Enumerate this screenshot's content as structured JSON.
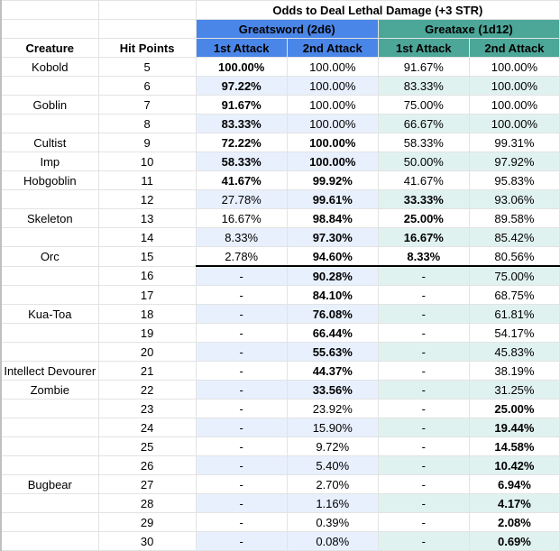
{
  "title": "Odds to Deal Lethal Damage (+3 STR)",
  "groups": [
    {
      "label": "Greatsword (2d6)",
      "color": "#4a86e8",
      "tint": "#e8f0fe"
    },
    {
      "label": "Greataxe (1d12)",
      "color": "#4ca799",
      "tint": "#e0f2ef"
    }
  ],
  "headers": [
    "Creature",
    "Hit Points",
    "1st Attack",
    "2nd Attack",
    "1st Attack",
    "2nd Attack"
  ],
  "rows": [
    {
      "creature": "Kobold",
      "hp": "5",
      "v": [
        "100.00%",
        "100.00%",
        "91.67%",
        "100.00%"
      ],
      "bold": [
        1,
        0,
        0,
        0
      ]
    },
    {
      "creature": "",
      "hp": "6",
      "v": [
        "97.22%",
        "100.00%",
        "83.33%",
        "100.00%"
      ],
      "bold": [
        1,
        0,
        0,
        0
      ]
    },
    {
      "creature": "Goblin",
      "hp": "7",
      "v": [
        "91.67%",
        "100.00%",
        "75.00%",
        "100.00%"
      ],
      "bold": [
        1,
        0,
        0,
        0
      ]
    },
    {
      "creature": "",
      "hp": "8",
      "v": [
        "83.33%",
        "100.00%",
        "66.67%",
        "100.00%"
      ],
      "bold": [
        1,
        0,
        0,
        0
      ]
    },
    {
      "creature": "Cultist",
      "hp": "9",
      "v": [
        "72.22%",
        "100.00%",
        "58.33%",
        "99.31%"
      ],
      "bold": [
        1,
        1,
        0,
        0
      ]
    },
    {
      "creature": "Imp",
      "hp": "10",
      "v": [
        "58.33%",
        "100.00%",
        "50.00%",
        "97.92%"
      ],
      "bold": [
        1,
        1,
        0,
        0
      ]
    },
    {
      "creature": "Hobgoblin",
      "hp": "11",
      "v": [
        "41.67%",
        "99.92%",
        "41.67%",
        "95.83%"
      ],
      "bold": [
        1,
        1,
        0,
        0
      ]
    },
    {
      "creature": "",
      "hp": "12",
      "v": [
        "27.78%",
        "99.61%",
        "33.33%",
        "93.06%"
      ],
      "bold": [
        0,
        1,
        1,
        0
      ]
    },
    {
      "creature": "Skeleton",
      "hp": "13",
      "v": [
        "16.67%",
        "98.84%",
        "25.00%",
        "89.58%"
      ],
      "bold": [
        0,
        1,
        1,
        0
      ]
    },
    {
      "creature": "",
      "hp": "14",
      "v": [
        "8.33%",
        "97.30%",
        "16.67%",
        "85.42%"
      ],
      "bold": [
        0,
        1,
        1,
        0
      ]
    },
    {
      "creature": "Orc",
      "hp": "15",
      "v": [
        "2.78%",
        "94.60%",
        "8.33%",
        "80.56%"
      ],
      "bold": [
        0,
        1,
        1,
        0
      ]
    },
    {
      "creature": "",
      "hp": "16",
      "v": [
        "-",
        "90.28%",
        "-",
        "75.00%"
      ],
      "bold": [
        0,
        1,
        0,
        0
      ]
    },
    {
      "creature": "",
      "hp": "17",
      "v": [
        "-",
        "84.10%",
        "-",
        "68.75%"
      ],
      "bold": [
        0,
        1,
        0,
        0
      ]
    },
    {
      "creature": "Kua-Toa",
      "hp": "18",
      "v": [
        "-",
        "76.08%",
        "-",
        "61.81%"
      ],
      "bold": [
        0,
        1,
        0,
        0
      ]
    },
    {
      "creature": "",
      "hp": "19",
      "v": [
        "-",
        "66.44%",
        "-",
        "54.17%"
      ],
      "bold": [
        0,
        1,
        0,
        0
      ]
    },
    {
      "creature": "",
      "hp": "20",
      "v": [
        "-",
        "55.63%",
        "-",
        "45.83%"
      ],
      "bold": [
        0,
        1,
        0,
        0
      ]
    },
    {
      "creature": "Intellect Devourer",
      "hp": "21",
      "v": [
        "-",
        "44.37%",
        "-",
        "38.19%"
      ],
      "bold": [
        0,
        1,
        0,
        0
      ]
    },
    {
      "creature": "Zombie",
      "hp": "22",
      "v": [
        "-",
        "33.56%",
        "-",
        "31.25%"
      ],
      "bold": [
        0,
        1,
        0,
        0
      ]
    },
    {
      "creature": "",
      "hp": "23",
      "v": [
        "-",
        "23.92%",
        "-",
        "25.00%"
      ],
      "bold": [
        0,
        0,
        0,
        1
      ]
    },
    {
      "creature": "",
      "hp": "24",
      "v": [
        "-",
        "15.90%",
        "-",
        "19.44%"
      ],
      "bold": [
        0,
        0,
        0,
        1
      ]
    },
    {
      "creature": "",
      "hp": "25",
      "v": [
        "-",
        "9.72%",
        "-",
        "14.58%"
      ],
      "bold": [
        0,
        0,
        0,
        1
      ]
    },
    {
      "creature": "",
      "hp": "26",
      "v": [
        "-",
        "5.40%",
        "-",
        "10.42%"
      ],
      "bold": [
        0,
        0,
        0,
        1
      ]
    },
    {
      "creature": "Bugbear",
      "hp": "27",
      "v": [
        "-",
        "2.70%",
        "-",
        "6.94%"
      ],
      "bold": [
        0,
        0,
        0,
        1
      ]
    },
    {
      "creature": "",
      "hp": "28",
      "v": [
        "-",
        "1.16%",
        "-",
        "4.17%"
      ],
      "bold": [
        0,
        0,
        0,
        1
      ]
    },
    {
      "creature": "",
      "hp": "29",
      "v": [
        "-",
        "0.39%",
        "-",
        "2.08%"
      ],
      "bold": [
        0,
        0,
        0,
        1
      ]
    },
    {
      "creature": "",
      "hp": "30",
      "v": [
        "-",
        "0.08%",
        "-",
        "0.69%"
      ],
      "bold": [
        0,
        0,
        0,
        1
      ]
    }
  ]
}
